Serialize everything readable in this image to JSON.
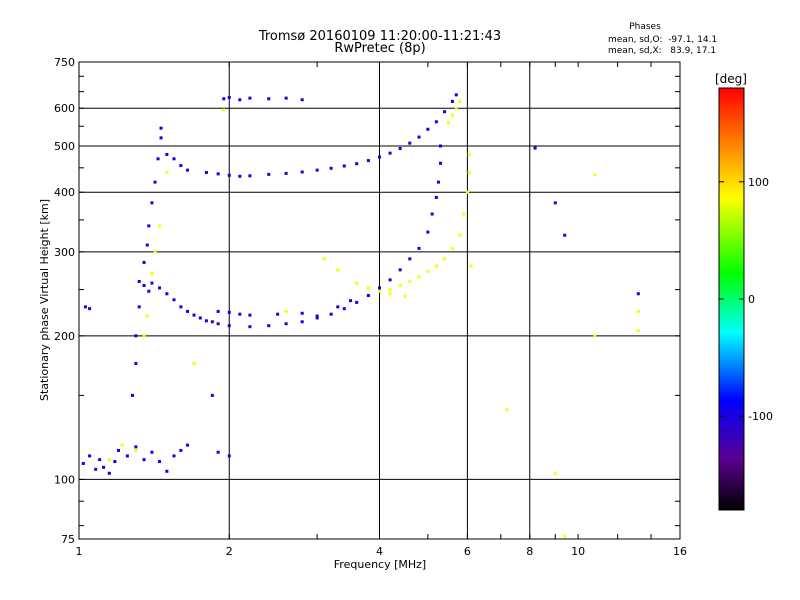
{
  "chart_data": {
    "type": "scatter",
    "title": "Tromsø 20160109 11:20:00-11:21:43",
    "subtitle": "RwPretec (8p)",
    "xlabel": "Frequency [MHz]",
    "ylabel": "Stationary phase Virtual Height [km]",
    "x_scale": "log",
    "y_scale": "log",
    "xlim": [
      1,
      16
    ],
    "ylim": [
      75,
      750
    ],
    "x_ticks": [
      1,
      2,
      4,
      6,
      8,
      10,
      16
    ],
    "x_tick_labels": [
      "1",
      "2",
      "4",
      "6",
      "8",
      "10",
      "16"
    ],
    "x_gridlines": [
      2,
      4,
      6,
      8
    ],
    "y_ticks": [
      75,
      100,
      200,
      300,
      400,
      500,
      600,
      750
    ],
    "y_tick_labels": [
      "75",
      "100",
      "200",
      "300",
      "400",
      "500",
      "600",
      "750"
    ],
    "y_gridlines": [
      100,
      200,
      300,
      400,
      500,
      600
    ],
    "grid": true,
    "phases_box": {
      "title": "Phases",
      "line_o": "mean, sd,O:  -97.1, 14.1",
      "line_x": "mean, sd,X:   83.9, 17.1"
    },
    "colorbar": {
      "label": "[deg]",
      "range": [
        -180,
        180
      ],
      "ticks": [
        100,
        0,
        -100
      ],
      "tick_labels": [
        "100",
        "0",
        "-100"
      ],
      "colormap": "rainbow (black-purple-blue-cyan-green-yellow-orange-red)"
    },
    "series": [
      {
        "name": "O",
        "phase_mean": -97.1,
        "points": [
          [
            1.02,
            108
          ],
          [
            1.05,
            112
          ],
          [
            1.08,
            105
          ],
          [
            1.1,
            110
          ],
          [
            1.12,
            106
          ],
          [
            1.15,
            103
          ],
          [
            1.18,
            109
          ],
          [
            1.2,
            115
          ],
          [
            1.25,
            112
          ],
          [
            1.3,
            117
          ],
          [
            1.35,
            110
          ],
          [
            1.4,
            114
          ],
          [
            1.45,
            109
          ],
          [
            1.5,
            104
          ],
          [
            1.55,
            112
          ],
          [
            1.6,
            115
          ],
          [
            1.65,
            118
          ],
          [
            1.03,
            230
          ],
          [
            1.05,
            228
          ],
          [
            1.28,
            150
          ],
          [
            1.3,
            175
          ],
          [
            1.3,
            200
          ],
          [
            1.32,
            230
          ],
          [
            1.32,
            260
          ],
          [
            1.35,
            285
          ],
          [
            1.37,
            310
          ],
          [
            1.38,
            340
          ],
          [
            1.4,
            380
          ],
          [
            1.42,
            420
          ],
          [
            1.44,
            470
          ],
          [
            1.46,
            520
          ],
          [
            1.46,
            545
          ],
          [
            1.5,
            480
          ],
          [
            1.55,
            470
          ],
          [
            1.6,
            455
          ],
          [
            1.65,
            445
          ],
          [
            1.35,
            255
          ],
          [
            1.38,
            248
          ],
          [
            1.4,
            258
          ],
          [
            1.45,
            252
          ],
          [
            1.5,
            245
          ],
          [
            1.55,
            238
          ],
          [
            1.6,
            230
          ],
          [
            1.65,
            225
          ],
          [
            1.7,
            221
          ],
          [
            1.75,
            218
          ],
          [
            1.8,
            215
          ],
          [
            1.85,
            214
          ],
          [
            1.9,
            212
          ],
          [
            2.0,
            210
          ],
          [
            2.2,
            209
          ],
          [
            2.4,
            210
          ],
          [
            2.6,
            212
          ],
          [
            2.8,
            214
          ],
          [
            3.0,
            218
          ],
          [
            3.2,
            222
          ],
          [
            3.4,
            228
          ],
          [
            3.6,
            235
          ],
          [
            3.8,
            243
          ],
          [
            4.0,
            252
          ],
          [
            4.2,
            262
          ],
          [
            4.4,
            275
          ],
          [
            4.6,
            290
          ],
          [
            4.8,
            305
          ],
          [
            5.0,
            330
          ],
          [
            5.1,
            360
          ],
          [
            5.2,
            390
          ],
          [
            5.25,
            420
          ],
          [
            5.3,
            460
          ],
          [
            5.3,
            500
          ],
          [
            1.9,
            225
          ],
          [
            2.0,
            224
          ],
          [
            2.1,
            222
          ],
          [
            2.2,
            221
          ],
          [
            2.5,
            222
          ],
          [
            2.8,
            223
          ],
          [
            3.0,
            220
          ],
          [
            3.3,
            230
          ],
          [
            3.5,
            237
          ],
          [
            1.8,
            440
          ],
          [
            1.9,
            437
          ],
          [
            2.0,
            434
          ],
          [
            2.1,
            432
          ],
          [
            2.2,
            433
          ],
          [
            2.4,
            436
          ],
          [
            2.6,
            438
          ],
          [
            2.8,
            441
          ],
          [
            3.0,
            445
          ],
          [
            3.2,
            449
          ],
          [
            3.4,
            454
          ],
          [
            3.6,
            459
          ],
          [
            3.8,
            466
          ],
          [
            4.0,
            474
          ],
          [
            4.2,
            483
          ],
          [
            4.4,
            494
          ],
          [
            4.6,
            507
          ],
          [
            4.8,
            522
          ],
          [
            5.0,
            542
          ],
          [
            5.2,
            562
          ],
          [
            5.4,
            590
          ],
          [
            5.6,
            620
          ],
          [
            5.7,
            640
          ],
          [
            1.95,
            628
          ],
          [
            2.0,
            632
          ],
          [
            2.1,
            625
          ],
          [
            2.2,
            630
          ],
          [
            2.4,
            628
          ],
          [
            2.6,
            630
          ],
          [
            2.8,
            625
          ],
          [
            1.9,
            114
          ],
          [
            2.0,
            112
          ],
          [
            1.85,
            150
          ],
          [
            13.2,
            245
          ],
          [
            9.4,
            325
          ],
          [
            9.0,
            380
          ],
          [
            8.2,
            495
          ]
        ]
      },
      {
        "name": "X",
        "phase_mean": 83.9,
        "points": [
          [
            1.15,
            110
          ],
          [
            1.22,
            118
          ],
          [
            1.3,
            115
          ],
          [
            1.35,
            200
          ],
          [
            1.37,
            220
          ],
          [
            1.4,
            270
          ],
          [
            1.42,
            300
          ],
          [
            1.45,
            340
          ],
          [
            1.5,
            440
          ],
          [
            3.1,
            290
          ],
          [
            3.3,
            275
          ],
          [
            3.6,
            258
          ],
          [
            3.8,
            252
          ],
          [
            4.0,
            248
          ],
          [
            4.2,
            250
          ],
          [
            4.4,
            255
          ],
          [
            4.6,
            260
          ],
          [
            4.8,
            266
          ],
          [
            5.0,
            273
          ],
          [
            5.2,
            280
          ],
          [
            5.4,
            290
          ],
          [
            5.6,
            305
          ],
          [
            5.8,
            325
          ],
          [
            5.9,
            360
          ],
          [
            6.0,
            400
          ],
          [
            6.05,
            440
          ],
          [
            6.05,
            480
          ],
          [
            4.2,
            245
          ],
          [
            4.5,
            242
          ],
          [
            5.6,
            580
          ],
          [
            5.7,
            600
          ],
          [
            5.8,
            620
          ],
          [
            5.5,
            560
          ],
          [
            2.6,
            225
          ],
          [
            1.95,
            595
          ],
          [
            1.7,
            175
          ],
          [
            9.0,
            103
          ],
          [
            9.4,
            76
          ],
          [
            10.8,
            200
          ],
          [
            10.8,
            435
          ],
          [
            13.2,
            205
          ],
          [
            13.2,
            225
          ],
          [
            6.1,
            280
          ],
          [
            7.2,
            140
          ]
        ]
      }
    ]
  }
}
